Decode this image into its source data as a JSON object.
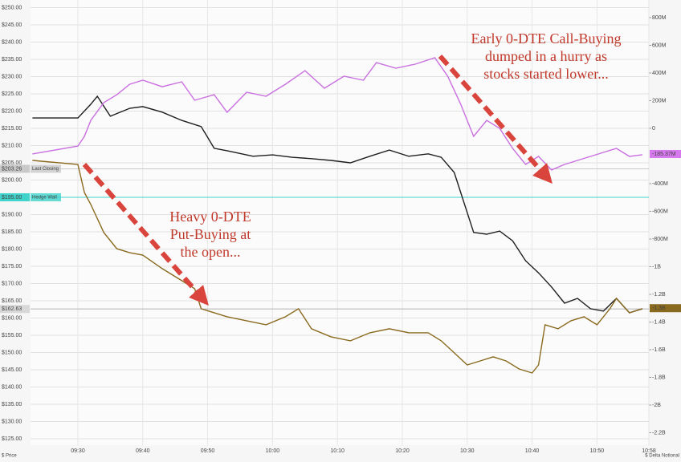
{
  "chart_data": {
    "type": "line",
    "xlim": [
      562.7,
      658
    ],
    "ylim": [
      123.14,
      252.2
    ],
    "y2lim": [
      -2290,
      927.5
    ],
    "grid": true,
    "xticks": [
      {
        "value": 570,
        "label": "09:30"
      },
      {
        "value": 580,
        "label": "09:40"
      },
      {
        "value": 590,
        "label": "09:50"
      },
      {
        "value": 600,
        "label": "10:00"
      },
      {
        "value": 610,
        "label": "10:10"
      },
      {
        "value": 620,
        "label": "10:20"
      },
      {
        "value": 630,
        "label": "10:30"
      },
      {
        "value": 640,
        "label": "10:40"
      },
      {
        "value": 650,
        "label": "10:50"
      },
      {
        "value": 658,
        "label": "10:58"
      }
    ],
    "yticks": [
      {
        "value": 250,
        "label": "$250.00"
      },
      {
        "value": 245,
        "label": "$245.00"
      },
      {
        "value": 240,
        "label": "$240.00"
      },
      {
        "value": 235,
        "label": "$235.00"
      },
      {
        "value": 230,
        "label": "$230.00"
      },
      {
        "value": 225,
        "label": "$225.00"
      },
      {
        "value": 220,
        "label": "$220.00"
      },
      {
        "value": 215,
        "label": "$215.00"
      },
      {
        "value": 210,
        "label": "$210.00"
      },
      {
        "value": 205,
        "label": "$205.00"
      },
      {
        "value": 200,
        "label": "$200.00"
      },
      {
        "value": 190,
        "label": "$190.00"
      },
      {
        "value": 185,
        "label": "$185.00"
      },
      {
        "value": 180,
        "label": "$180.00"
      },
      {
        "value": 175,
        "label": "$175.00"
      },
      {
        "value": 170,
        "label": "$170.00"
      },
      {
        "value": 165,
        "label": "$165.00"
      },
      {
        "value": 160,
        "label": "$160.00"
      },
      {
        "value": 155,
        "label": "$155.00"
      },
      {
        "value": 150,
        "label": "$150.00"
      },
      {
        "value": 145,
        "label": "$145.00"
      },
      {
        "value": 140,
        "label": "$140.00"
      },
      {
        "value": 135,
        "label": "$135.00"
      },
      {
        "value": 130,
        "label": "$130.00"
      },
      {
        "value": 125,
        "label": "$125.00"
      }
    ],
    "y2ticks": [
      {
        "value": 800,
        "label": "800M"
      },
      {
        "value": 600,
        "label": "600M"
      },
      {
        "value": 400,
        "label": "400M"
      },
      {
        "value": 200,
        "label": "200M"
      },
      0,
      {
        "value": -400,
        "label": "-400M"
      },
      {
        "value": -600,
        "label": "-600M"
      },
      {
        "value": -800,
        "label": "-800M"
      },
      {
        "value": -1000,
        "label": "-1B"
      },
      {
        "value": -1200,
        "label": "-1.2B"
      },
      {
        "value": -1400,
        "label": "-1.4B"
      },
      {
        "value": -1600,
        "label": "-1.6B"
      },
      {
        "value": -1800,
        "label": "-1.8B"
      },
      {
        "value": -2000,
        "label": "-2B"
      },
      {
        "value": -2200,
        "label": "-2.2B"
      }
    ],
    "y_label": "$ Price",
    "y2_label": "$ Delta Notional",
    "reference_lines": [
      {
        "value": 203.26,
        "label": "$203.26",
        "name": "Last Closing",
        "color": "#c9c9c9"
      },
      {
        "value": 195,
        "label": "$195.00",
        "name": "Hedge Wall",
        "color": "#3fd3cc"
      }
    ],
    "series": [
      {
        "color": "#1e1e1e",
        "x": [
          563,
          570,
          572,
          573,
          575,
          578,
          580,
          583,
          586,
          589,
          591,
          593,
          597,
          600,
          603,
          606,
          609,
          612,
          615,
          618,
          621,
          624,
          626,
          628,
          629,
          631,
          633,
          635,
          637,
          639,
          641,
          643,
          645,
          647,
          649,
          651,
          653,
          655,
          657
        ],
        "values": [
          218.0,
          218.0,
          222.0,
          224.3,
          218.5,
          220.8,
          221.3,
          219.7,
          217.3,
          215.5,
          209.2,
          208.5,
          206.9,
          207.3,
          206.6,
          206.2,
          205.7,
          205.0,
          206.9,
          208.7,
          206.9,
          207.6,
          206.6,
          202.2,
          196.4,
          184.8,
          184.3,
          185.2,
          182.4,
          176.6,
          173.1,
          169.0,
          164.3,
          165.7,
          162.7,
          162.0,
          165.7,
          161.5,
          162.7
        ],
        "end_label": {
          "value": 162.63,
          "label": "$162.63"
        },
        "tag_color": "#d8d8d8"
      },
      {
        "color": "#c96fe0",
        "axis": "y2",
        "x": [
          563,
          570,
          571,
          572,
          574,
          576,
          578,
          580,
          583,
          586,
          588,
          591,
          593,
          596,
          599,
          602,
          605,
          608,
          611,
          614,
          616,
          619,
          622,
          625,
          627,
          629,
          631,
          633,
          635,
          637,
          639,
          641,
          643,
          645,
          647,
          649,
          651,
          653,
          655,
          657
        ],
        "values": [
          -185,
          -128,
          -58,
          58,
          186,
          243,
          319,
          348,
          301,
          336,
          203,
          243,
          116,
          261,
          232,
          319,
          417,
          290,
          377,
          348,
          475,
          435,
          464,
          510,
          377,
          174,
          -58,
          58,
          0,
          -145,
          -261,
          -203,
          -301,
          -261,
          -232,
          -203,
          -174,
          -145,
          -203,
          -191
        ],
        "end_label": {
          "value": -185.37,
          "label": "-185.37M"
        },
        "tag_color": "#d678ee"
      },
      {
        "color": "#8a6a1e",
        "axis": "y2",
        "x": [
          563,
          570,
          571,
          572,
          574,
          576,
          578,
          580,
          583,
          586,
          588,
          589,
          591,
          593,
          596,
          599,
          602,
          604,
          606,
          609,
          612,
          615,
          618,
          621,
          624,
          626,
          628,
          630,
          632,
          634,
          636,
          638,
          640,
          641,
          642,
          644,
          646,
          648,
          650,
          652,
          653,
          655,
          657
        ],
        "values": [
          -232,
          -261,
          -464,
          -551,
          -754,
          -870,
          -899,
          -916,
          -1014,
          -1101,
          -1159,
          -1304,
          -1333,
          -1362,
          -1391,
          -1420,
          -1362,
          -1304,
          -1449,
          -1507,
          -1536,
          -1478,
          -1449,
          -1478,
          -1478,
          -1536,
          -1623,
          -1710,
          -1681,
          -1652,
          -1681,
          -1739,
          -1768,
          -1710,
          -1420,
          -1449,
          -1391,
          -1362,
          -1420,
          -1304,
          -1229,
          -1333,
          -1304
        ],
        "end_label": {
          "value": -1300,
          "label": "-1.3B"
        },
        "tag_color": "#8a6a1e"
      }
    ],
    "annotations": [
      {
        "lines": [
          "Early 0-DTE Call-Buying",
          "dumped in a hurry as",
          "stocks started lower..."
        ],
        "color": "#c0392b"
      },
      {
        "lines": [
          "Heavy 0-DTE",
          "Put-Buying at",
          "the open..."
        ],
        "color": "#c0392b"
      }
    ]
  }
}
